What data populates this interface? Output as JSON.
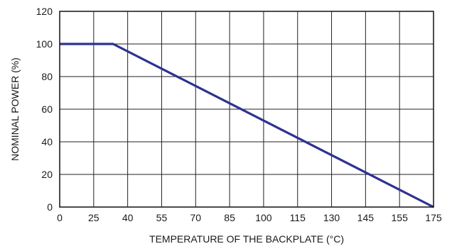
{
  "chart_data": {
    "type": "line",
    "title": "",
    "xlabel": "TEMPERATURE OF THE BACKPLATE (°C)",
    "ylabel": "NOMINAL POWER (%)",
    "xlim": [
      0,
      175
    ],
    "ylim": [
      0,
      120
    ],
    "x_ticks": [
      0,
      25,
      40,
      55,
      70,
      85,
      100,
      115,
      130,
      145,
      155,
      175
    ],
    "y_ticks": [
      0,
      20,
      40,
      60,
      80,
      100,
      120
    ],
    "grid": true,
    "legend": "none",
    "series": [
      {
        "color": "#2e3192",
        "x": [
          0,
          25,
          175
        ],
        "y": [
          100,
          100,
          0
        ]
      }
    ]
  }
}
